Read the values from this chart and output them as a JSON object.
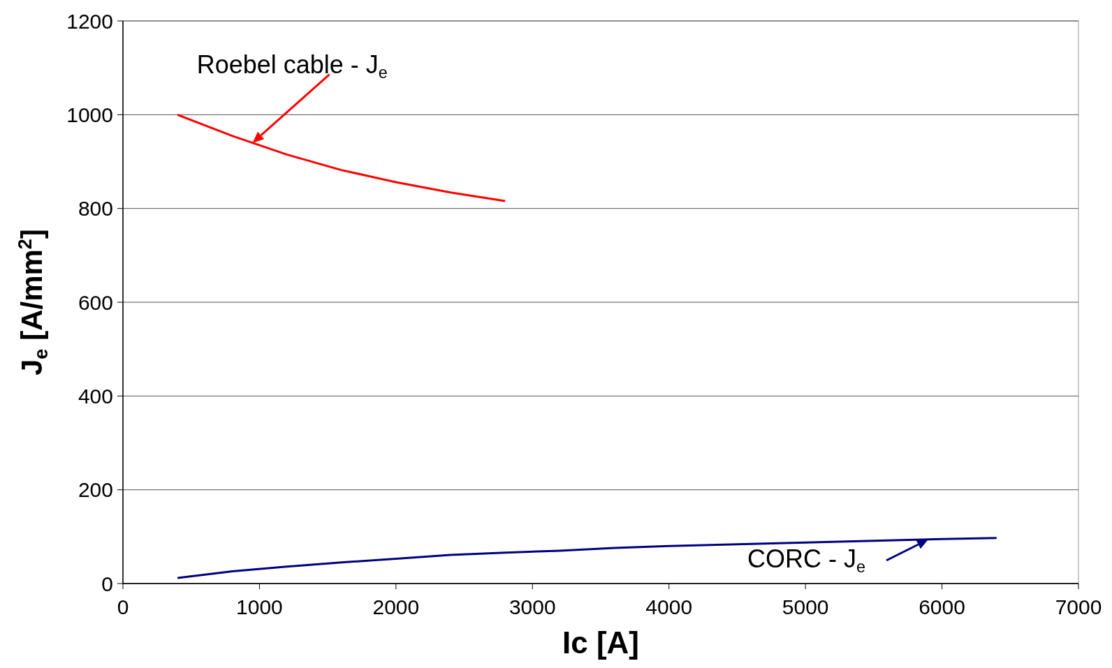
{
  "chart_data": {
    "type": "line",
    "xlabel": "Ic [A]",
    "ylabel": "J$_{e}$ [A/mm$^{2}$]",
    "xlim": [
      0,
      7000
    ],
    "xticks": [
      0,
      1000,
      2000,
      3000,
      4000,
      5000,
      6000,
      7000
    ],
    "ylim": [
      0,
      1200
    ],
    "yticks": [
      0,
      200,
      400,
      600,
      800,
      1000,
      1200
    ],
    "grid": "y",
    "marker": "none",
    "line_style": "solid",
    "series": [
      {
        "color": "#ff0000",
        "x": [
          400,
          800,
          1200,
          1600,
          2000,
          2400,
          2800
        ],
        "values": [
          1000,
          955,
          915,
          882,
          856,
          834,
          816
        ]
      },
      {
        "color": "#000080",
        "x": [
          400,
          800,
          1200,
          1600,
          2000,
          2400,
          2800,
          3200,
          3600,
          4000,
          4400,
          4800,
          5200,
          5600,
          6000,
          6400
        ],
        "values": [
          12,
          26,
          36,
          45,
          53,
          61,
          66,
          70,
          76,
          80,
          83,
          86,
          89,
          92,
          95,
          97
        ]
      }
    ],
    "annotations": [
      {
        "text": "Roebel cable - J$_{e}$",
        "x": 950,
        "y": 940
      },
      {
        "text": "CORC - J$_{e}$",
        "x": 5900,
        "y": 94
      }
    ]
  }
}
